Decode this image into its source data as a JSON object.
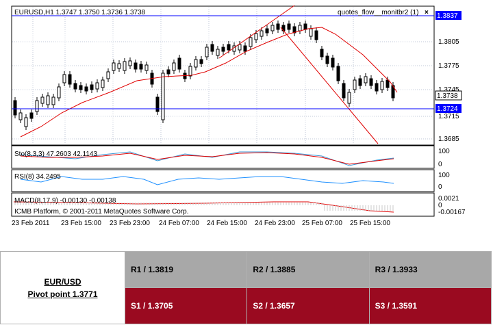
{
  "chart": {
    "header": "EURUSD,H1  1.3747 1.3750 1.3736 1.3738",
    "indicator_title": "quotes_flow__monitbr2 (1)",
    "close_icon": "×",
    "price_labels": {
      "top": "1.3837",
      "p1": "1.3805",
      "p2": "1.3775",
      "p3": "1.3745",
      "current": "1.3738",
      "line2": "1.3724",
      "p4": "1.3715",
      "p5": "1.3685"
    },
    "sto_label": "Sto(8,3,3) 47.2603 42.1143",
    "sto_scale": [
      "100",
      "0"
    ],
    "rsi_label": "RSI(8) 34.2495",
    "rsi_scale": [
      "100",
      "0"
    ],
    "macd_label": "MACD(8,17,9) -0.00130 -0.00138",
    "macd_scale": [
      "0.0021",
      "0",
      "-0.00167"
    ],
    "copyright": "ICMB Platform, © 2001-2011 MetaQuotes Software Corp.",
    "time_labels": [
      "23 Feb 2011",
      "23 Feb 15:00",
      "23 Feb 23:00",
      "24 Feb 07:00",
      "24 Feb 15:00",
      "24 Feb 23:00",
      "25 Feb 07:00",
      "25 Feb 15:00"
    ],
    "colors": {
      "up_line": "#0000ff",
      "ma": "#e00000",
      "sto_main": "#3a9ad8",
      "rsi": "#1e90ff",
      "grid": "#c0c8d8"
    }
  },
  "pivot": {
    "pair": "EUR/USD",
    "pivot_point": "Pivot point 1.3771",
    "r1": "R1 / 1.3819",
    "r2": "R2 / 1.3885",
    "r3": "R3 / 1.3933",
    "s1": "S1 / 1.3705",
    "s2": "S2 / 1.3657",
    "s3": "S3 / 1.3591"
  }
}
